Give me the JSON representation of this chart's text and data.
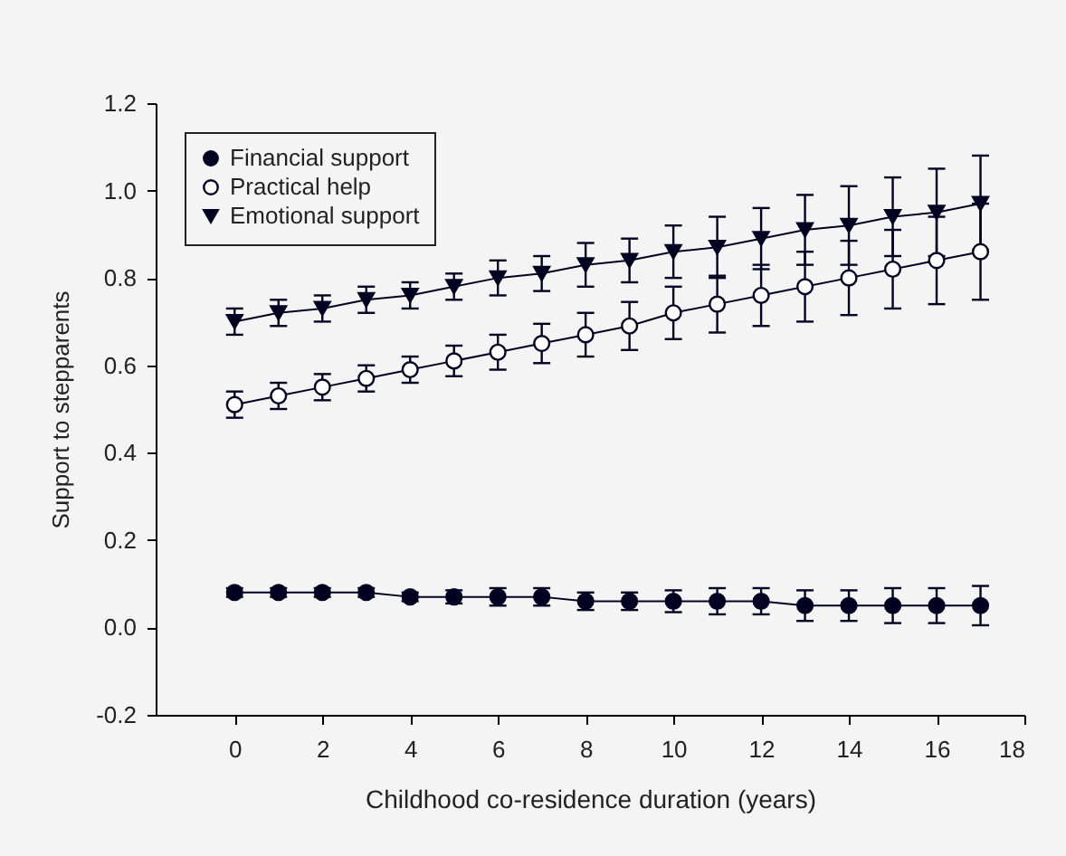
{
  "chart_data": {
    "type": "line",
    "xlabel": "Childhood co-residence duration (years)",
    "ylabel": "Support to stepparents",
    "x": [
      0,
      1,
      2,
      3,
      4,
      5,
      6,
      7,
      8,
      9,
      10,
      11,
      12,
      13,
      14,
      15,
      16,
      17
    ],
    "xlim": [
      -1.8,
      18
    ],
    "xticks": [
      0,
      2,
      4,
      6,
      8,
      10,
      12,
      14,
      16,
      18
    ],
    "ylim": [
      -0.2,
      1.2
    ],
    "yticks": [
      -0.2,
      {
        "value": 0,
        "label": "0.0"
      },
      0.2,
      0.4,
      0.6,
      0.8,
      {
        "value": 1,
        "label": "1.0"
      },
      1.2
    ],
    "grid": false,
    "legend": "top left",
    "series": [
      {
        "name": "Financial support",
        "color": "#000020",
        "marker": "circle",
        "values": [
          0.08,
          0.08,
          0.08,
          0.08,
          0.07,
          0.07,
          0.07,
          0.07,
          0.06,
          0.06,
          0.06,
          0.06,
          0.06,
          0.05,
          0.05,
          0.05,
          0.05,
          0.05
        ],
        "errors": [
          0.01,
          0.01,
          0.01,
          0.01,
          0.01,
          0.015,
          0.02,
          0.02,
          0.02,
          0.02,
          0.025,
          0.03,
          0.03,
          0.035,
          0.035,
          0.04,
          0.04,
          0.045
        ]
      },
      {
        "name": "Practical help",
        "color": "#ffffff",
        "marker": "circle",
        "values": [
          0.51,
          0.53,
          0.55,
          0.57,
          0.59,
          0.61,
          0.63,
          0.65,
          0.67,
          0.69,
          0.72,
          0.74,
          0.76,
          0.78,
          0.8,
          0.82,
          0.84,
          0.86
        ],
        "errors": [
          0.03,
          0.03,
          0.03,
          0.03,
          0.03,
          0.035,
          0.04,
          0.045,
          0.05,
          0.055,
          0.06,
          0.065,
          0.07,
          0.08,
          0.085,
          0.09,
          0.1,
          0.11
        ]
      },
      {
        "name": "Emotional support",
        "color": "#000020",
        "marker": "triangle",
        "values": [
          0.7,
          0.72,
          0.73,
          0.75,
          0.76,
          0.78,
          0.8,
          0.81,
          0.83,
          0.84,
          0.86,
          0.87,
          0.89,
          0.91,
          0.92,
          0.94,
          0.95,
          0.97
        ],
        "errors": [
          0.03,
          0.03,
          0.03,
          0.03,
          0.03,
          0.03,
          0.04,
          0.04,
          0.05,
          0.05,
          0.06,
          0.07,
          0.07,
          0.08,
          0.09,
          0.09,
          0.1,
          0.11
        ]
      }
    ]
  }
}
